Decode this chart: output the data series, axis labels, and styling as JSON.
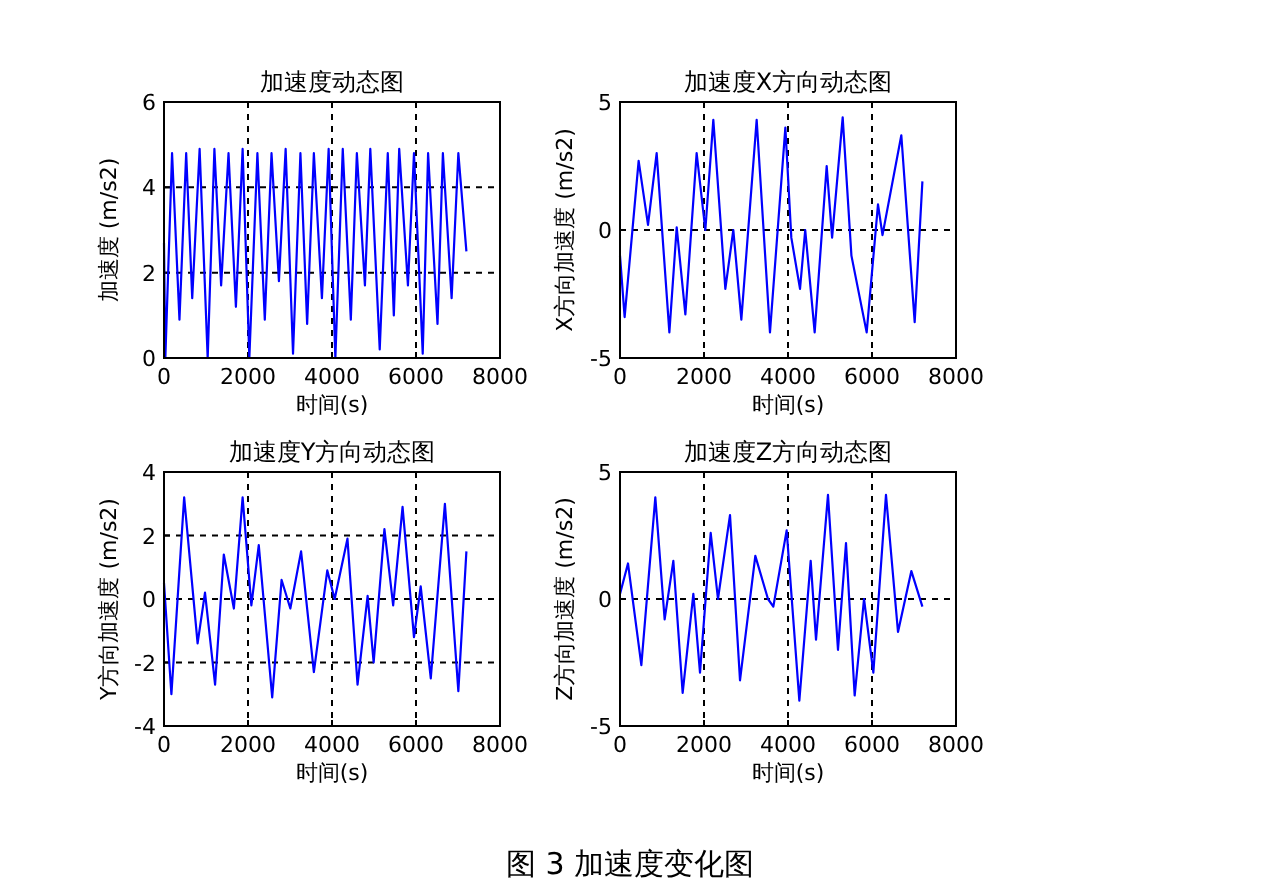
{
  "chart_data": [
    {
      "type": "line",
      "title": "加速度动态图",
      "xlabel": "时间(s)",
      "ylabel": "加速度 (m/s2)",
      "xlim": [
        0,
        8000
      ],
      "xticks": [
        0,
        2000,
        4000,
        6000,
        8000
      ],
      "ylim": [
        0,
        6
      ],
      "yticks": [
        0,
        2,
        4,
        6
      ],
      "grid": true,
      "x": [
        0,
        32,
        192,
        368,
        528,
        672,
        848,
        1040,
        1200,
        1360,
        1536,
        1712,
        1872,
        2032,
        2224,
        2400,
        2560,
        2736,
        2896,
        3072,
        3248,
        3408,
        3568,
        3760,
        3920,
        4080,
        4256,
        4448,
        4592,
        4784,
        4912,
        5136,
        5328,
        5472,
        5600,
        5808,
        5952,
        6160,
        6288,
        6512,
        6640,
        6848,
        7008,
        7200
      ],
      "series": [
        {
          "color": "#0000ff",
          "values": [
            2.7,
            0.0,
            4.8,
            0.9,
            4.8,
            1.4,
            4.9,
            0.0,
            4.9,
            1.7,
            4.8,
            1.2,
            4.9,
            0.0,
            4.8,
            0.9,
            4.8,
            1.8,
            4.9,
            0.1,
            4.8,
            0.8,
            4.8,
            1.4,
            4.9,
            0.0,
            4.9,
            0.9,
            4.8,
            1.7,
            4.9,
            0.2,
            4.8,
            1.0,
            4.9,
            1.7,
            4.8,
            0.1,
            4.8,
            0.8,
            4.8,
            1.4,
            4.8,
            2.5
          ]
        }
      ]
    },
    {
      "type": "line",
      "title": "加速度X方向动态图",
      "xlabel": "时间(s)",
      "ylabel": "X方向加速度 (m/s2)",
      "xlim": [
        0,
        8000
      ],
      "xticks": [
        0,
        2000,
        4000,
        6000,
        8000
      ],
      "ylim": [
        -5,
        5
      ],
      "yticks": [
        -5,
        0,
        5
      ],
      "grid": true,
      "x": [
        0,
        110,
        444,
        667,
        873,
        1175,
        1350,
        1556,
        1825,
        2032,
        2222,
        2508,
        2698,
        2889,
        3254,
        3571,
        3937,
        4079,
        4286,
        4410,
        4635,
        4921,
        5050,
        5302,
        5510,
        5873,
        6143,
        6250,
        6698,
        7016,
        7200
      ],
      "series": [
        {
          "color": "#0000ff",
          "values": [
            -1.0,
            -3.4,
            2.7,
            0.2,
            3.0,
            -4.0,
            0.1,
            -3.3,
            3.0,
            0.0,
            4.3,
            -2.3,
            0.0,
            -3.5,
            4.3,
            -4.0,
            4.0,
            -0.3,
            -2.3,
            0.0,
            -4.0,
            2.5,
            -0.3,
            4.4,
            -1.0,
            -4.0,
            1.0,
            -0.2,
            3.7,
            -3.6,
            1.9
          ]
        }
      ]
    },
    {
      "type": "line",
      "title": "加速度Y方向动态图",
      "xlabel": "时间(s)",
      "ylabel": "Y方向加速度 (m/s2)",
      "xlim": [
        0,
        8000
      ],
      "xticks": [
        0,
        2000,
        4000,
        6000,
        8000
      ],
      "ylim": [
        -4,
        4
      ],
      "yticks": [
        -4,
        -2,
        0,
        2,
        4
      ],
      "grid": true,
      "x": [
        0,
        176,
        480,
        800,
        976,
        1216,
        1424,
        1664,
        1872,
        2080,
        2256,
        2576,
        2800,
        3008,
        3264,
        3568,
        3888,
        4064,
        4368,
        4608,
        4848,
        4992,
        5248,
        5456,
        5680,
        5952,
        6112,
        6352,
        6688,
        7008,
        7200
      ],
      "series": [
        {
          "color": "#0000ff",
          "values": [
            0.5,
            -3.0,
            3.2,
            -1.4,
            0.2,
            -2.7,
            1.4,
            -0.3,
            3.2,
            -0.2,
            1.7,
            -3.1,
            0.6,
            -0.3,
            1.5,
            -2.3,
            0.9,
            0.0,
            1.9,
            -2.7,
            0.1,
            -2.0,
            2.2,
            -0.2,
            2.9,
            -1.2,
            0.4,
            -2.5,
            3.0,
            -2.9,
            1.5
          ]
        }
      ]
    },
    {
      "type": "line",
      "title": "加速度Z方向动态图",
      "xlabel": "时间(s)",
      "ylabel": "Z方向加速度 (m/s2)",
      "xlim": [
        0,
        8000
      ],
      "xticks": [
        0,
        2000,
        4000,
        6000,
        8000
      ],
      "ylim": [
        -5,
        5
      ],
      "yticks": [
        -5,
        0,
        5
      ],
      "grid": true,
      "annotations": [
        "图 3  加速度变化图"
      ],
      "x": [
        0,
        190,
        508,
        841,
        1063,
        1270,
        1492,
        1746,
        1905,
        2159,
        2333,
        2619,
        2857,
        3222,
        3524,
        3651,
        3968,
        4270,
        4540,
        4667,
        4952,
        5190,
        5381,
        5587,
        5810,
        6032,
        6333,
        6619,
        6937,
        7200
      ],
      "series": [
        {
          "color": "#0000ff",
          "values": [
            0.2,
            1.4,
            -2.6,
            4.0,
            -0.8,
            1.5,
            -3.7,
            0.2,
            -2.9,
            2.6,
            0.0,
            3.3,
            -3.2,
            1.7,
            0.0,
            -0.3,
            2.7,
            -4.0,
            1.5,
            -1.6,
            4.1,
            -2.0,
            2.2,
            -3.8,
            0.0,
            -2.9,
            4.1,
            -1.3,
            1.1,
            -0.3
          ]
        }
      ]
    }
  ]
}
